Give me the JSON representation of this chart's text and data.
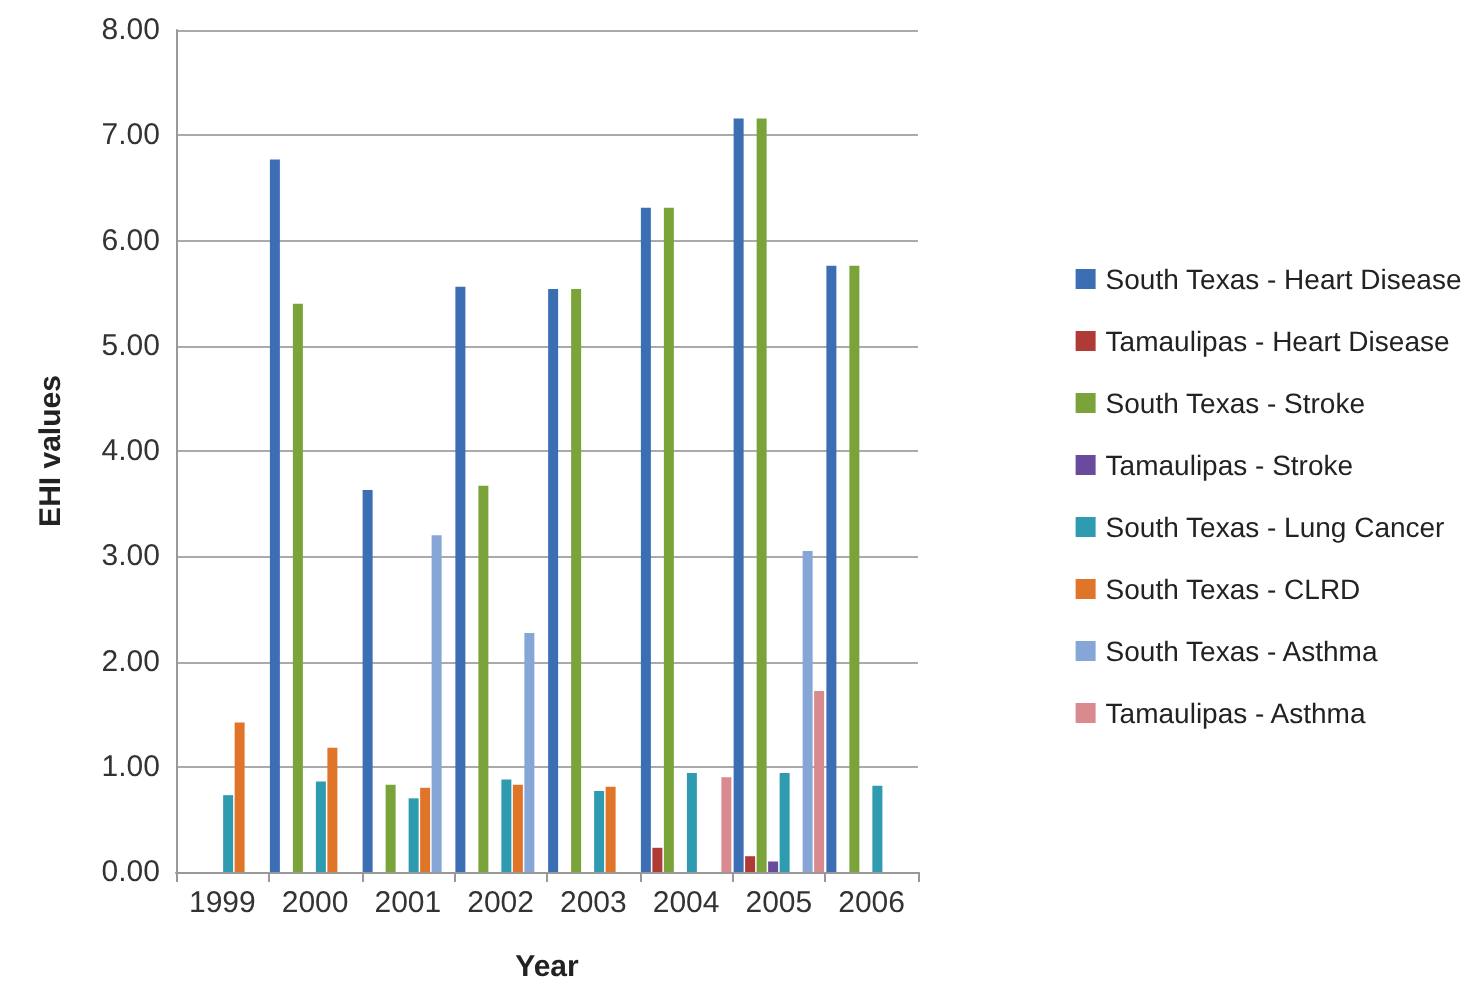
{
  "chart_data": {
    "type": "bar",
    "xlabel": "Year",
    "ylabel": "EHI values",
    "categories": [
      "1999",
      "2000",
      "2001",
      "2002",
      "2003",
      "2004",
      "2005",
      "2006"
    ],
    "series": [
      {
        "name": "South Texas - Heart Disease",
        "color": "#3c6eb4",
        "values": [
          null,
          6.77,
          3.63,
          5.56,
          5.54,
          6.31,
          7.16,
          5.76
        ]
      },
      {
        "name": "Tamaulipas - Heart Disease",
        "color": "#b03a36",
        "values": [
          null,
          null,
          null,
          null,
          null,
          0.23,
          0.15,
          null
        ]
      },
      {
        "name": "South Texas - Stroke",
        "color": "#7aa43a",
        "values": [
          null,
          5.4,
          0.83,
          3.67,
          5.54,
          6.31,
          7.16,
          5.76
        ]
      },
      {
        "name": "Tamaulipas - Stroke",
        "color": "#6a4a9c",
        "values": [
          null,
          null,
          null,
          null,
          null,
          null,
          0.1,
          null
        ]
      },
      {
        "name": "South Texas - Lung Cancer",
        "color": "#2e9bb0",
        "values": [
          0.73,
          0.86,
          0.7,
          0.88,
          0.77,
          0.94,
          0.94,
          0.82
        ]
      },
      {
        "name": "South Texas - CLRD",
        "color": "#e0752a",
        "values": [
          1.42,
          1.18,
          0.8,
          0.83,
          0.81,
          null,
          null,
          null
        ]
      },
      {
        "name": "South Texas - Asthma",
        "color": "#86a6d8",
        "values": [
          null,
          null,
          3.2,
          2.27,
          null,
          null,
          3.05,
          null
        ]
      },
      {
        "name": "Tamaulipas - Asthma",
        "color": "#d88a8e",
        "values": [
          null,
          null,
          null,
          null,
          null,
          0.9,
          1.72,
          null
        ]
      }
    ],
    "ylim": [
      0,
      8
    ],
    "yticks": [
      {
        "value": 0,
        "label": "0.00"
      },
      {
        "value": 1,
        "label": "1.00"
      },
      {
        "value": 2,
        "label": "2.00"
      },
      {
        "value": 3,
        "label": "3.00"
      },
      {
        "value": 4,
        "label": "4.00"
      },
      {
        "value": 5,
        "label": "5.00"
      },
      {
        "value": 6,
        "label": "6.00"
      },
      {
        "value": 7,
        "label": "7.00"
      },
      {
        "value": 8,
        "label": "8.00"
      }
    ],
    "grid": "y",
    "legend": "right"
  }
}
